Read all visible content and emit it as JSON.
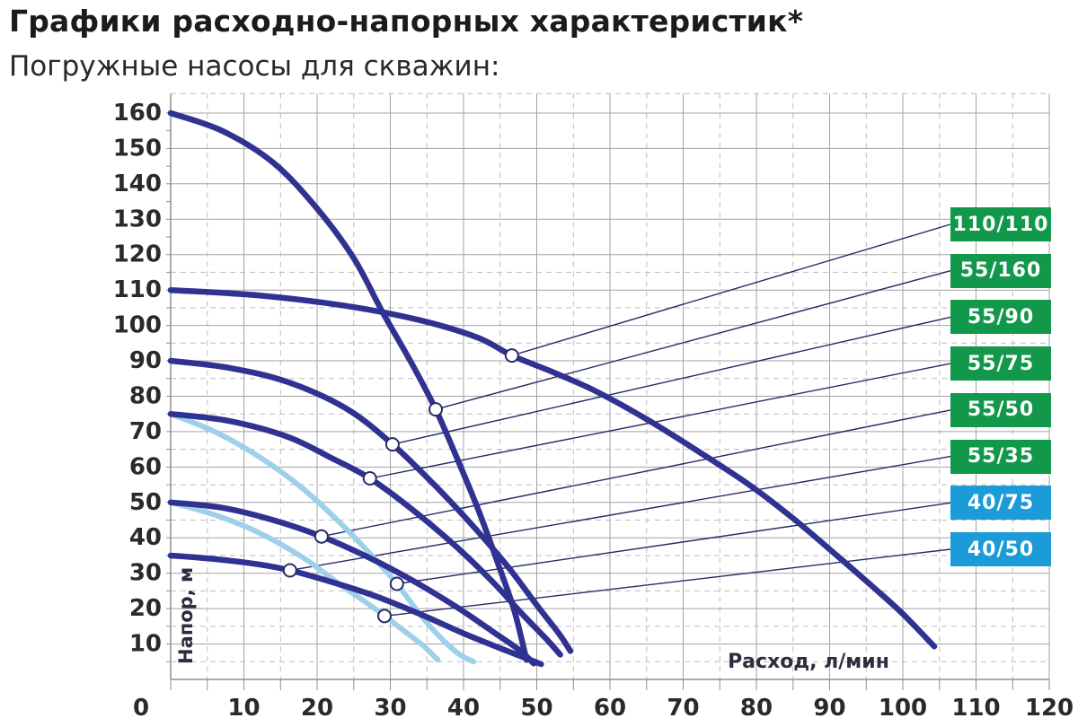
{
  "header": {
    "title": "Графики расходно-напорных характеристик*",
    "subtitle": "Погружные насосы для скважин:"
  },
  "colors": {
    "dark_curve": "#2f3290",
    "light_curve": "#9fd0ea",
    "badge_green": "#12984b",
    "badge_blue": "#1b9cd8",
    "leader_line": "#262a66",
    "marker_fill": "#ffffff",
    "grid_solid": "#a3a3a3",
    "grid_dashed": "#bdbdbd",
    "axis_line": "#8f8f8f",
    "tick_text": "#2a2a2c"
  },
  "chart_data": {
    "type": "line",
    "title": "Графики расходно-напорных характеристик*",
    "subtitle": "Погружные насосы для скважин:",
    "xlabel": "Расход, л/мин",
    "ylabel": "Напор, м",
    "xlim": [
      0,
      120
    ],
    "ylim": [
      0,
      165
    ],
    "grid": "solid every 10, dashed every 5",
    "legend_position": "right badges",
    "x_ticks": [
      0,
      10,
      20,
      30,
      40,
      50,
      60,
      70,
      80,
      90,
      100,
      110,
      120
    ],
    "y_ticks": [
      10,
      20,
      30,
      40,
      50,
      60,
      70,
      80,
      90,
      100,
      110,
      120,
      130,
      140,
      150,
      160
    ],
    "series": [
      {
        "name": "110/110",
        "line": "dark_curve",
        "badge": "badge_green",
        "marker": [
          46.6,
          91.5
        ],
        "points": [
          [
            0,
            110
          ],
          [
            12,
            108.5
          ],
          [
            24,
            105.5
          ],
          [
            34,
            101.5
          ],
          [
            42,
            96.5
          ],
          [
            46.6,
            91.5
          ],
          [
            52,
            87
          ],
          [
            58,
            81.5
          ],
          [
            65,
            73.5
          ],
          [
            72,
            64.5
          ],
          [
            79,
            55
          ],
          [
            85,
            45.5
          ],
          [
            91,
            35
          ],
          [
            96,
            26
          ],
          [
            100,
            18.5
          ],
          [
            104.3,
            9.3
          ]
        ]
      },
      {
        "name": "55/160",
        "line": "dark_curve",
        "badge": "badge_green",
        "marker": [
          36.2,
          76.3
        ],
        "points": [
          [
            0,
            160
          ],
          [
            7,
            155
          ],
          [
            14,
            146
          ],
          [
            20,
            133
          ],
          [
            25,
            119
          ],
          [
            29,
            103.5
          ],
          [
            33,
            89
          ],
          [
            36.2,
            76.3
          ],
          [
            39,
            63
          ],
          [
            42,
            48
          ],
          [
            45,
            31
          ],
          [
            47,
            19
          ],
          [
            48.6,
            5.5
          ]
        ]
      },
      {
        "name": "55/90",
        "line": "dark_curve",
        "badge": "badge_green",
        "marker": [
          30.3,
          66.4
        ],
        "points": [
          [
            0,
            90
          ],
          [
            8,
            88
          ],
          [
            16,
            84
          ],
          [
            24,
            76.5
          ],
          [
            30.3,
            66.4
          ],
          [
            36,
            55
          ],
          [
            41,
            44
          ],
          [
            46,
            32
          ],
          [
            50,
            21
          ],
          [
            53,
            13
          ],
          [
            54.6,
            8
          ]
        ]
      },
      {
        "name": "55/75",
        "line": "dark_curve",
        "badge": "badge_green",
        "marker": [
          27.2,
          56.8
        ],
        "points": [
          [
            0,
            75
          ],
          [
            8,
            73
          ],
          [
            16,
            68.5
          ],
          [
            22,
            62.5
          ],
          [
            27.2,
            56.8
          ],
          [
            33,
            48
          ],
          [
            39,
            37.5
          ],
          [
            44,
            27.5
          ],
          [
            48,
            18.5
          ],
          [
            51.5,
            11
          ],
          [
            53.2,
            7
          ]
        ]
      },
      {
        "name": "55/50",
        "line": "dark_curve",
        "badge": "badge_green",
        "marker": [
          20.6,
          40.4
        ],
        "points": [
          [
            0,
            50
          ],
          [
            7,
            48.5
          ],
          [
            14,
            45
          ],
          [
            20.6,
            40.4
          ],
          [
            27,
            34.5
          ],
          [
            33,
            28
          ],
          [
            39,
            20.5
          ],
          [
            44,
            13.5
          ],
          [
            47.5,
            8.5
          ],
          [
            49.6,
            4.5
          ]
        ]
      },
      {
        "name": "55/35",
        "line": "dark_curve",
        "badge": "badge_green",
        "marker": [
          16.3,
          30.8
        ],
        "points": [
          [
            0,
            35
          ],
          [
            6,
            34
          ],
          [
            12,
            32.5
          ],
          [
            16.3,
            30.8
          ],
          [
            22,
            27.5
          ],
          [
            28,
            23.5
          ],
          [
            34,
            18.5
          ],
          [
            40,
            13
          ],
          [
            46,
            8
          ],
          [
            50.6,
            4.3
          ]
        ]
      },
      {
        "name": "40/75",
        "line": "light_curve",
        "badge": "badge_blue",
        "marker": [
          30.9,
          27
        ],
        "points": [
          [
            0,
            75
          ],
          [
            6,
            70
          ],
          [
            12,
            63
          ],
          [
            18,
            54
          ],
          [
            23,
            44.5
          ],
          [
            27,
            36
          ],
          [
            30.9,
            27
          ],
          [
            34,
            18.5
          ],
          [
            37,
            11.5
          ],
          [
            39.5,
            7
          ],
          [
            41.4,
            5
          ]
        ]
      },
      {
        "name": "40/50",
        "line": "light_curve",
        "badge": "badge_blue",
        "marker": [
          29.2,
          17.9
        ],
        "points": [
          [
            0,
            50
          ],
          [
            6,
            46.5
          ],
          [
            12,
            41.5
          ],
          [
            18,
            34.5
          ],
          [
            23,
            27
          ],
          [
            26.5,
            22
          ],
          [
            29.2,
            18
          ],
          [
            32,
            13.5
          ],
          [
            34.5,
            9.5
          ],
          [
            36.5,
            5.5
          ]
        ]
      }
    ]
  }
}
